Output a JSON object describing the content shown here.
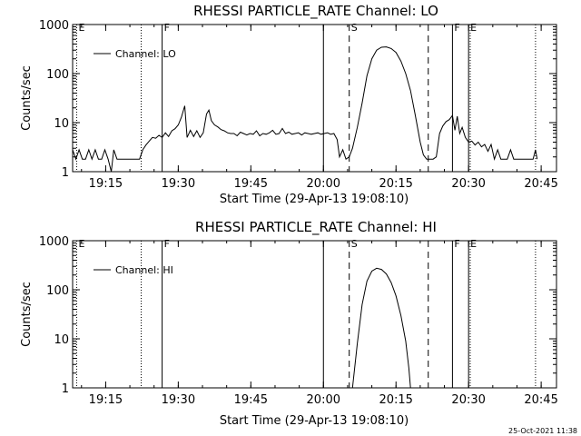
{
  "chart_data": [
    {
      "type": "line",
      "title": "RHESSI PARTICLE_RATE Channel: LO",
      "xlabel": "Start Time (29-Apr-13 19:08:10)",
      "ylabel": "Counts/sec",
      "y_scale": "log",
      "ylim": [
        1,
        1000
      ],
      "xlim": [
        "19:08:10",
        "20:48:10"
      ],
      "x_ticks": [
        "19:15",
        "19:30",
        "19:45",
        "20:00",
        "20:15",
        "20:30",
        "20:45"
      ],
      "y_ticks": [
        "1",
        "10",
        "100",
        "1000"
      ],
      "legend": {
        "position": "top-left",
        "entries": [
          "Channel: LO"
        ]
      },
      "grid": false,
      "markers": [
        {
          "time": "19:09:00",
          "style": "dotted",
          "label": "E"
        },
        {
          "time": "19:22:20",
          "style": "dotted",
          "label": ""
        },
        {
          "time": "19:26:40",
          "style": "solid",
          "label": "F"
        },
        {
          "time": "20:00:00",
          "style": "solid",
          "label": ""
        },
        {
          "time": "20:05:20",
          "style": "dashed",
          "label": "S"
        },
        {
          "time": "20:21:40",
          "style": "dashed",
          "label": ""
        },
        {
          "time": "20:26:40",
          "style": "solid",
          "label": "F"
        },
        {
          "time": "20:30:00",
          "style": "solid",
          "label": "E"
        },
        {
          "time": "20:30:20",
          "style": "dotted",
          "label": ""
        },
        {
          "time": "20:43:50",
          "style": "dotted",
          "label": ""
        }
      ],
      "series": [
        {
          "name": "Channel: LO",
          "points": [
            [
              "19:08:10",
              2.8
            ],
            [
              "19:08:50",
              1.8
            ],
            [
              "19:09:30",
              2.8
            ],
            [
              "19:10:10",
              1.8
            ],
            [
              "19:10:50",
              1.8
            ],
            [
              "19:11:30",
              2.8
            ],
            [
              "19:12:10",
              1.8
            ],
            [
              "19:12:50",
              2.8
            ],
            [
              "19:13:30",
              1.8
            ],
            [
              "19:14:10",
              1.8
            ],
            [
              "19:14:50",
              2.8
            ],
            [
              "19:15:30",
              1.8
            ],
            [
              "19:16:10",
              1.0
            ],
            [
              "19:16:40",
              2.8
            ],
            [
              "19:17:20",
              1.8
            ],
            [
              "19:18:00",
              1.8
            ],
            [
              "19:18:40",
              1.8
            ],
            [
              "19:19:20",
              1.8
            ],
            [
              "19:20:00",
              1.8
            ],
            [
              "19:20:40",
              1.8
            ],
            [
              "19:21:20",
              1.8
            ],
            [
              "19:22:00",
              1.8
            ],
            [
              "19:22:40",
              2.8
            ],
            [
              "19:23:20",
              3.5
            ],
            [
              "19:24:00",
              4.2
            ],
            [
              "19:24:40",
              5.0
            ],
            [
              "19:25:20",
              4.8
            ],
            [
              "19:26:00",
              5.5
            ],
            [
              "19:26:40",
              5.0
            ],
            [
              "19:27:20",
              6.2
            ],
            [
              "19:28:00",
              5.2
            ],
            [
              "19:28:40",
              6.8
            ],
            [
              "19:29:20",
              7.5
            ],
            [
              "19:30:00",
              9.0
            ],
            [
              "19:30:40",
              13.0
            ],
            [
              "19:31:20",
              22.0
            ],
            [
              "19:31:50",
              5.0
            ],
            [
              "19:32:30",
              7.0
            ],
            [
              "19:33:10",
              5.2
            ],
            [
              "19:33:50",
              6.8
            ],
            [
              "19:34:30",
              5.0
            ],
            [
              "19:35:10",
              6.2
            ],
            [
              "19:35:50",
              15.0
            ],
            [
              "19:36:20",
              18.0
            ],
            [
              "19:36:50",
              11.0
            ],
            [
              "19:37:30",
              9.0
            ],
            [
              "19:38:10",
              8.2
            ],
            [
              "19:38:50",
              7.2
            ],
            [
              "19:39:30",
              6.8
            ],
            [
              "19:40:10",
              6.2
            ],
            [
              "19:40:50",
              6.0
            ],
            [
              "19:41:30",
              6.0
            ],
            [
              "19:42:10",
              5.4
            ],
            [
              "19:42:50",
              6.4
            ],
            [
              "19:43:30",
              6.0
            ],
            [
              "19:44:10",
              5.6
            ],
            [
              "19:44:50",
              6.0
            ],
            [
              "19:45:30",
              5.8
            ],
            [
              "19:46:10",
              6.8
            ],
            [
              "19:46:50",
              5.4
            ],
            [
              "19:47:30",
              6.0
            ],
            [
              "19:48:10",
              5.8
            ],
            [
              "19:48:50",
              6.2
            ],
            [
              "19:49:30",
              7.0
            ],
            [
              "19:50:10",
              5.8
            ],
            [
              "19:50:50",
              6.0
            ],
            [
              "19:51:30",
              7.6
            ],
            [
              "19:52:10",
              6.0
            ],
            [
              "19:52:50",
              6.4
            ],
            [
              "19:53:30",
              5.8
            ],
            [
              "19:54:10",
              6.0
            ],
            [
              "19:54:50",
              6.2
            ],
            [
              "19:55:30",
              5.6
            ],
            [
              "19:56:10",
              6.2
            ],
            [
              "19:56:50",
              6.0
            ],
            [
              "19:57:30",
              5.8
            ],
            [
              "19:58:10",
              6.0
            ],
            [
              "19:58:50",
              6.2
            ],
            [
              "19:59:30",
              5.8
            ],
            [
              "20:00:10",
              6.0
            ],
            [
              "20:00:50",
              6.2
            ],
            [
              "20:01:30",
              5.8
            ],
            [
              "20:02:10",
              6.0
            ],
            [
              "20:02:50",
              4.5
            ],
            [
              "20:03:20",
              2.0
            ],
            [
              "20:04:00",
              2.8
            ],
            [
              "20:04:40",
              1.8
            ],
            [
              "20:05:20",
              2.0
            ],
            [
              "20:06:00",
              3.0
            ],
            [
              "20:07:00",
              8.0
            ],
            [
              "20:08:00",
              25.0
            ],
            [
              "20:09:00",
              90.0
            ],
            [
              "20:10:00",
              200.0
            ],
            [
              "20:11:00",
              300.0
            ],
            [
              "20:12:00",
              345.0
            ],
            [
              "20:13:00",
              350.0
            ],
            [
              "20:14:00",
              325.0
            ],
            [
              "20:15:00",
              270.0
            ],
            [
              "20:16:00",
              180.0
            ],
            [
              "20:17:00",
              100.0
            ],
            [
              "20:18:00",
              45.0
            ],
            [
              "20:19:00",
              14.0
            ],
            [
              "20:20:00",
              4.0
            ],
            [
              "20:20:40",
              2.2
            ],
            [
              "20:21:20",
              1.8
            ],
            [
              "20:22:00",
              1.8
            ],
            [
              "20:22:40",
              1.8
            ],
            [
              "20:23:20",
              2.0
            ],
            [
              "20:24:00",
              6.0
            ],
            [
              "20:24:40",
              8.5
            ],
            [
              "20:25:20",
              10.5
            ],
            [
              "20:26:00",
              11.5
            ],
            [
              "20:26:40",
              14.0
            ],
            [
              "20:27:10",
              7.0
            ],
            [
              "20:27:40",
              13.5
            ],
            [
              "20:28:10",
              6.0
            ],
            [
              "20:28:40",
              8.0
            ],
            [
              "20:29:20",
              5.0
            ],
            [
              "20:30:00",
              4.0
            ],
            [
              "20:30:40",
              4.2
            ],
            [
              "20:31:20",
              3.5
            ],
            [
              "20:32:00",
              4.0
            ],
            [
              "20:32:40",
              3.2
            ],
            [
              "20:33:20",
              3.6
            ],
            [
              "20:34:00",
              2.6
            ],
            [
              "20:34:40",
              3.6
            ],
            [
              "20:35:20",
              1.8
            ],
            [
              "20:36:00",
              2.8
            ],
            [
              "20:36:40",
              1.8
            ],
            [
              "20:37:20",
              1.8
            ],
            [
              "20:38:00",
              1.8
            ],
            [
              "20:38:40",
              2.8
            ],
            [
              "20:39:20",
              1.8
            ],
            [
              "20:40:00",
              1.8
            ],
            [
              "20:40:40",
              1.8
            ],
            [
              "20:41:20",
              1.8
            ],
            [
              "20:42:00",
              1.8
            ],
            [
              "20:42:40",
              1.8
            ],
            [
              "20:43:20",
              1.8
            ],
            [
              "20:43:50",
              2.8
            ],
            [
              "20:44:10",
              1.8
            ]
          ]
        }
      ]
    },
    {
      "type": "line",
      "title": "RHESSI PARTICLE_RATE Channel: HI",
      "xlabel": "Start Time (29-Apr-13 19:08:10)",
      "ylabel": "Counts/sec",
      "y_scale": "log",
      "ylim": [
        1,
        1000
      ],
      "xlim": [
        "19:08:10",
        "20:48:10"
      ],
      "x_ticks": [
        "19:15",
        "19:30",
        "19:45",
        "20:00",
        "20:15",
        "20:30",
        "20:45"
      ],
      "y_ticks": [
        "1",
        "10",
        "100",
        "1000"
      ],
      "legend": {
        "position": "top-left",
        "entries": [
          "Channel: HI"
        ]
      },
      "grid": false,
      "markers": [
        {
          "time": "19:09:00",
          "style": "dotted",
          "label": "E"
        },
        {
          "time": "19:22:20",
          "style": "dotted",
          "label": ""
        },
        {
          "time": "19:26:40",
          "style": "solid",
          "label": "F"
        },
        {
          "time": "20:00:00",
          "style": "solid",
          "label": ""
        },
        {
          "time": "20:05:20",
          "style": "dashed",
          "label": "S"
        },
        {
          "time": "20:21:40",
          "style": "dashed",
          "label": ""
        },
        {
          "time": "20:26:40",
          "style": "solid",
          "label": "F"
        },
        {
          "time": "20:30:00",
          "style": "solid",
          "label": "E"
        },
        {
          "time": "20:30:20",
          "style": "dotted",
          "label": ""
        },
        {
          "time": "20:43:50",
          "style": "dotted",
          "label": ""
        }
      ],
      "series": [
        {
          "name": "Channel: HI",
          "points": [
            [
              "20:06:00",
              1.0
            ],
            [
              "20:07:00",
              8.0
            ],
            [
              "20:08:00",
              50.0
            ],
            [
              "20:09:00",
              150.0
            ],
            [
              "20:10:00",
              240.0
            ],
            [
              "20:11:00",
              275.0
            ],
            [
              "20:12:00",
              260.0
            ],
            [
              "20:13:00",
              210.0
            ],
            [
              "20:14:00",
              140.0
            ],
            [
              "20:15:00",
              75.0
            ],
            [
              "20:16:00",
              30.0
            ],
            [
              "20:17:00",
              9.0
            ],
            [
              "20:17:40",
              2.5
            ],
            [
              "20:18:00",
              1.0
            ]
          ]
        }
      ]
    }
  ],
  "footer": {
    "timestamp": "25-Oct-2021 11:38"
  }
}
